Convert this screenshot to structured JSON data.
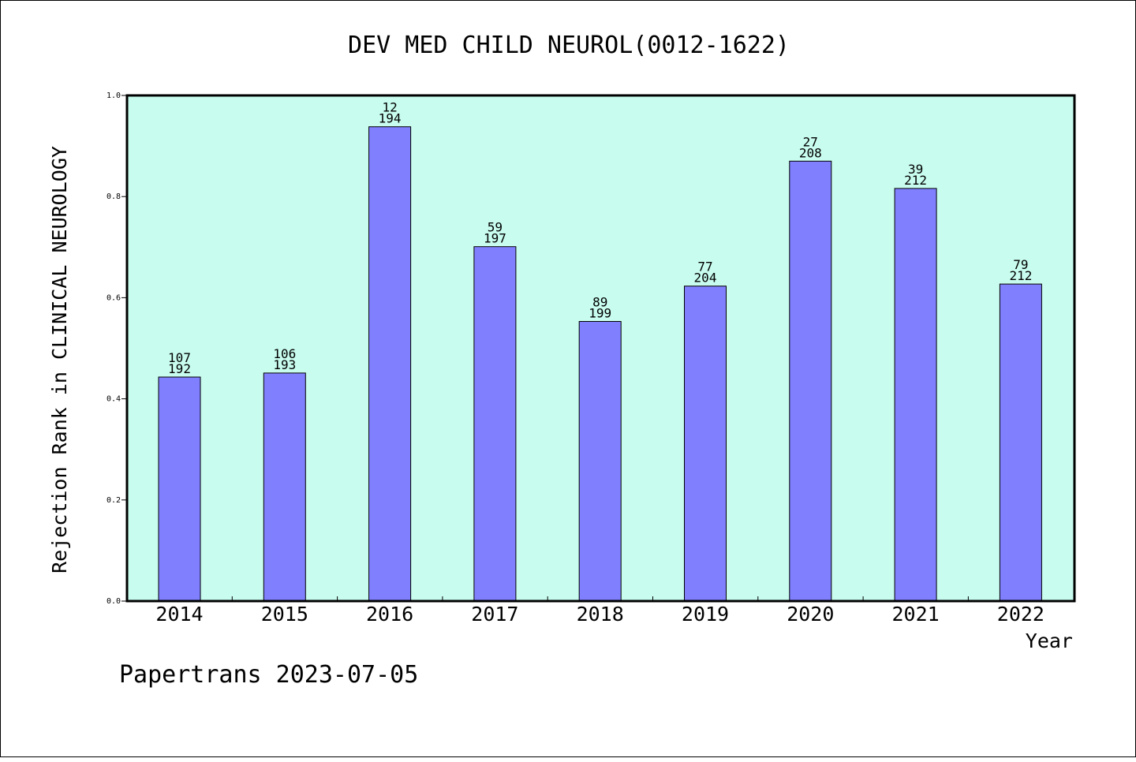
{
  "chart_data": {
    "type": "bar",
    "title": "DEV MED CHILD NEUROL(0012-1622)",
    "xlabel": "Year",
    "ylabel": "Rejection Rank in CLINICAL NEUROLOGY",
    "categories": [
      "2014",
      "2015",
      "2016",
      "2017",
      "2018",
      "2019",
      "2020",
      "2021",
      "2022"
    ],
    "values": [
      0.443,
      0.451,
      0.938,
      0.701,
      0.553,
      0.623,
      0.87,
      0.816,
      0.627
    ],
    "rank_labels": [
      "107",
      "106",
      "12",
      "59",
      "89",
      "77",
      "27",
      "39",
      "79"
    ],
    "total_labels": [
      "192",
      "193",
      "194",
      "197",
      "199",
      "204",
      "208",
      "212",
      "212"
    ],
    "ylim": [
      0,
      1.0
    ],
    "yticks": [
      "0.0",
      "0.2",
      "0.4",
      "0.6",
      "0.8",
      "1.0"
    ],
    "grid": false,
    "colors": {
      "plot_background": "#c8fcee",
      "bar_fill": "#8080ff",
      "bar_stroke": "#000000"
    }
  },
  "footer": {
    "text": "Papertrans 2023-07-05"
  }
}
